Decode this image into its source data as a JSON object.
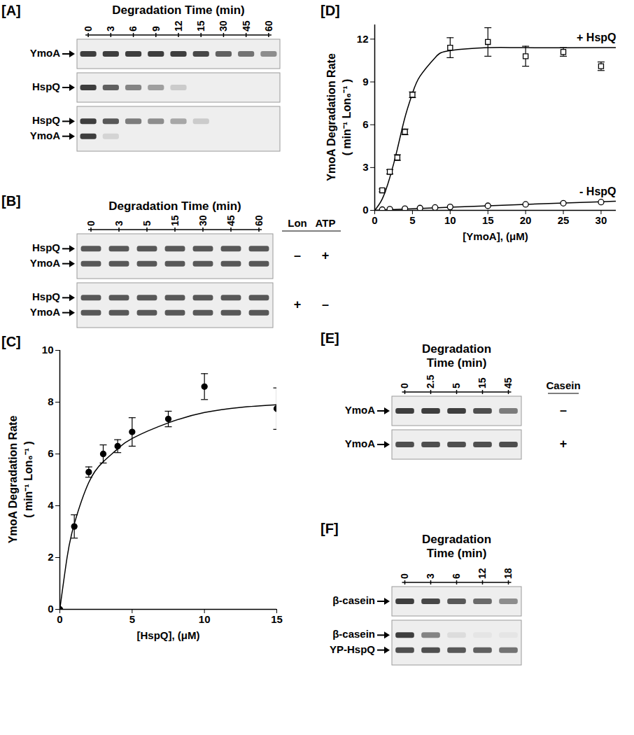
{
  "chart_data": [
    {
      "panel": "[C]",
      "type": "scatter",
      "xlabel": "[HspQ], (μM)",
      "ylabel": [
        "YmoA Degradation Rate",
        "( min⁻¹ Lon₆⁻¹ )"
      ],
      "xlim": [
        0,
        15
      ],
      "ylim": [
        0,
        10
      ],
      "xticks": [
        0,
        5,
        10,
        15
      ],
      "yticks": [
        0,
        2,
        4,
        6,
        8,
        10
      ],
      "series": [
        {
          "color": "#000000",
          "marker": "filled_circle",
          "x": [
            0,
            1,
            2,
            3,
            4,
            5,
            7.5,
            10,
            15
          ],
          "values": [
            0,
            3.2,
            5.3,
            6.0,
            6.3,
            6.85,
            7.35,
            8.6,
            7.75
          ],
          "error": [
            0,
            0.45,
            0.2,
            0.35,
            0.25,
            0.55,
            0.3,
            0.5,
            0.8
          ],
          "fit_x": [
            0,
            0.5,
            1,
            2,
            3,
            4,
            5,
            7.5,
            10,
            12.5,
            15
          ],
          "fit_values": [
            0,
            2.0,
            3.3,
            4.9,
            5.7,
            6.2,
            6.6,
            7.2,
            7.6,
            7.8,
            7.9
          ]
        }
      ]
    },
    {
      "panel": "[D]",
      "type": "scatter",
      "xlabel": "[YmoA], (μM)",
      "ylabel": [
        "YmoA Degradation Rate",
        "( min⁻¹ Lon₆⁻¹ )"
      ],
      "xlim": [
        0,
        32
      ],
      "ylim": [
        0,
        13
      ],
      "xticks": [
        0,
        5,
        10,
        15,
        20,
        25,
        30
      ],
      "yticks": [
        0,
        3,
        6,
        9,
        12
      ],
      "series": [
        {
          "name": "+ HspQ",
          "color": "#000000",
          "marker": "open_square",
          "x": [
            1,
            2,
            3,
            4,
            5,
            10,
            15,
            20,
            25,
            30
          ],
          "values": [
            1.4,
            2.7,
            3.7,
            5.5,
            8.1,
            11.4,
            11.8,
            10.8,
            11.1,
            10.1
          ],
          "error": [
            0.1,
            0.15,
            0.2,
            0.2,
            0.2,
            0.7,
            1.0,
            0.7,
            0.3,
            0.3
          ],
          "fit_x": [
            0,
            1,
            2,
            3,
            4,
            5,
            6,
            8,
            10,
            15,
            20,
            30,
            32
          ],
          "fit_values": [
            0,
            0.8,
            2.3,
            4.3,
            6.5,
            8.2,
            9.4,
            10.7,
            11.2,
            11.4,
            11.4,
            11.4,
            11.4
          ]
        },
        {
          "name": "- HspQ",
          "color": "#000000",
          "marker": "open_circle",
          "x": [
            1,
            2,
            4,
            6,
            8,
            10,
            15,
            20,
            25,
            30
          ],
          "values": [
            0.05,
            0.08,
            0.12,
            0.16,
            0.2,
            0.24,
            0.32,
            0.42,
            0.5,
            0.58
          ],
          "fit_x": [
            0,
            10,
            20,
            30,
            32
          ],
          "fit_values": [
            0,
            0.22,
            0.42,
            0.6,
            0.64
          ]
        }
      ]
    }
  ],
  "gels": [
    {
      "panel": "[A]",
      "title": "Degradation Time (min)",
      "lanes": [
        0,
        3,
        6,
        9,
        12,
        15,
        30,
        45,
        60
      ],
      "blots": [
        {
          "bands": [
            {
              "name": "YmoA",
              "intensity": [
                1,
                1,
                1,
                1,
                1,
                0.95,
                0.8,
                0.7,
                0.55
              ]
            }
          ]
        },
        {
          "bands": [
            {
              "name": "HspQ",
              "intensity": [
                1,
                0.8,
                0.6,
                0.45,
                0.2,
                0,
                0,
                0,
                0
              ]
            }
          ]
        },
        {
          "bands": [
            {
              "name": "HspQ",
              "intensity": [
                1,
                0.85,
                0.65,
                0.55,
                0.4,
                0.2,
                0,
                0,
                0
              ]
            },
            {
              "name": "YmoA",
              "intensity": [
                1,
                0.15,
                0,
                0,
                0,
                0,
                0,
                0,
                0
              ]
            }
          ]
        }
      ]
    },
    {
      "panel": "[B]",
      "title": "Degradation Time (min)",
      "lanes": [
        0,
        3,
        5,
        15,
        30,
        45,
        60
      ],
      "condition_headers": [
        "Lon",
        "ATP"
      ],
      "blots": [
        {
          "conditions": [
            "–",
            "+"
          ],
          "bands": [
            {
              "name": "HspQ",
              "intensity": [
                0.85,
                0.85,
                0.85,
                0.85,
                0.85,
                0.85,
                0.85
              ]
            },
            {
              "name": "YmoA",
              "intensity": [
                0.85,
                0.85,
                0.85,
                0.85,
                0.85,
                0.85,
                0.85
              ]
            }
          ]
        },
        {
          "conditions": [
            "+",
            "–"
          ],
          "bands": [
            {
              "name": "HspQ",
              "intensity": [
                0.85,
                0.85,
                0.85,
                0.85,
                0.85,
                0.85,
                0.85
              ]
            },
            {
              "name": "YmoA",
              "intensity": [
                0.85,
                0.85,
                0.85,
                0.85,
                0.85,
                0.85,
                0.85
              ]
            }
          ]
        }
      ]
    },
    {
      "panel": "[E]",
      "title": "Degradation Time (min)",
      "lanes": [
        0,
        2.5,
        5,
        15,
        45
      ],
      "condition_headers": [
        "Casein"
      ],
      "blots": [
        {
          "conditions": [
            "–"
          ],
          "bands": [
            {
              "name": "YmoA",
              "intensity": [
                1,
                1,
                1,
                0.9,
                0.65
              ]
            }
          ]
        },
        {
          "conditions": [
            "+"
          ],
          "bands": [
            {
              "name": "YmoA",
              "intensity": [
                0.9,
                0.9,
                0.9,
                0.9,
                0.9
              ]
            }
          ]
        }
      ]
    },
    {
      "panel": "[F]",
      "title": "Degradation Time (min)",
      "lanes": [
        0,
        3,
        6,
        12,
        18
      ],
      "blots": [
        {
          "bands": [
            {
              "name": "β-casein",
              "intensity": [
                1,
                0.95,
                0.85,
                0.75,
                0.55
              ]
            }
          ]
        },
        {
          "bands": [
            {
              "name": "β-casein",
              "intensity": [
                1,
                0.6,
                0.1,
                0.05,
                0.05
              ]
            },
            {
              "name": "YP-HspQ",
              "intensity": [
                0.9,
                0.9,
                0.85,
                0.8,
                0.7
              ]
            }
          ]
        }
      ]
    }
  ]
}
